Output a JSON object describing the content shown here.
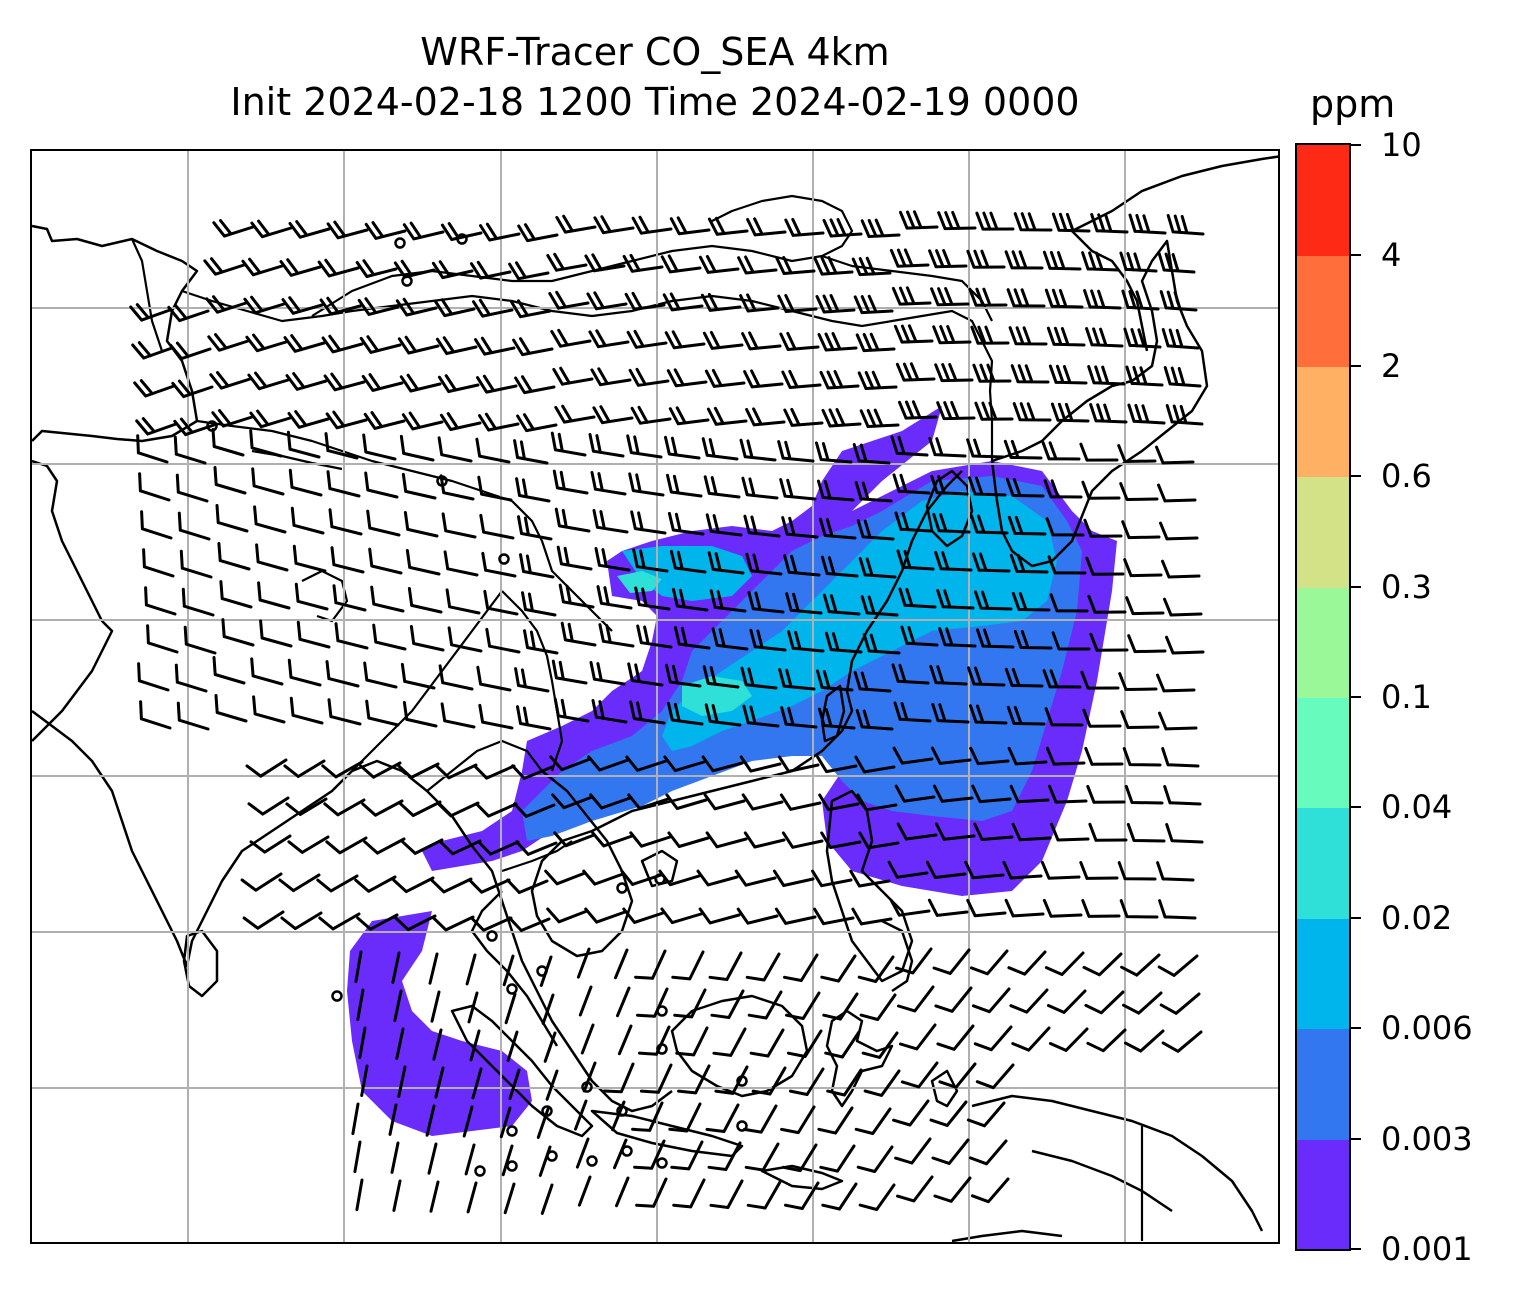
{
  "title_line1": "WRF-Tracer CO_SEA 4km",
  "title_line2": "Init 2024-02-18 1200 Time 2024-02-19 0000",
  "colorbar": {
    "unit": "ppm",
    "levels": [
      "0.001",
      "0.003",
      "0.006",
      "0.02",
      "0.04",
      "0.1",
      "0.3",
      "0.6",
      "2",
      "4",
      "10"
    ],
    "colors": [
      "#6a2cfa",
      "#3377f0",
      "#00b4ec",
      "#2ee0d8",
      "#68fbbe",
      "#9bf898",
      "#d3e187",
      "#ffb062",
      "#ff6e3b",
      "#ff2a15"
    ]
  },
  "map": {
    "gridlines": true,
    "features": [
      "coastlines",
      "country-borders",
      "wind-barbs",
      "co-tracer-plume"
    ]
  }
}
